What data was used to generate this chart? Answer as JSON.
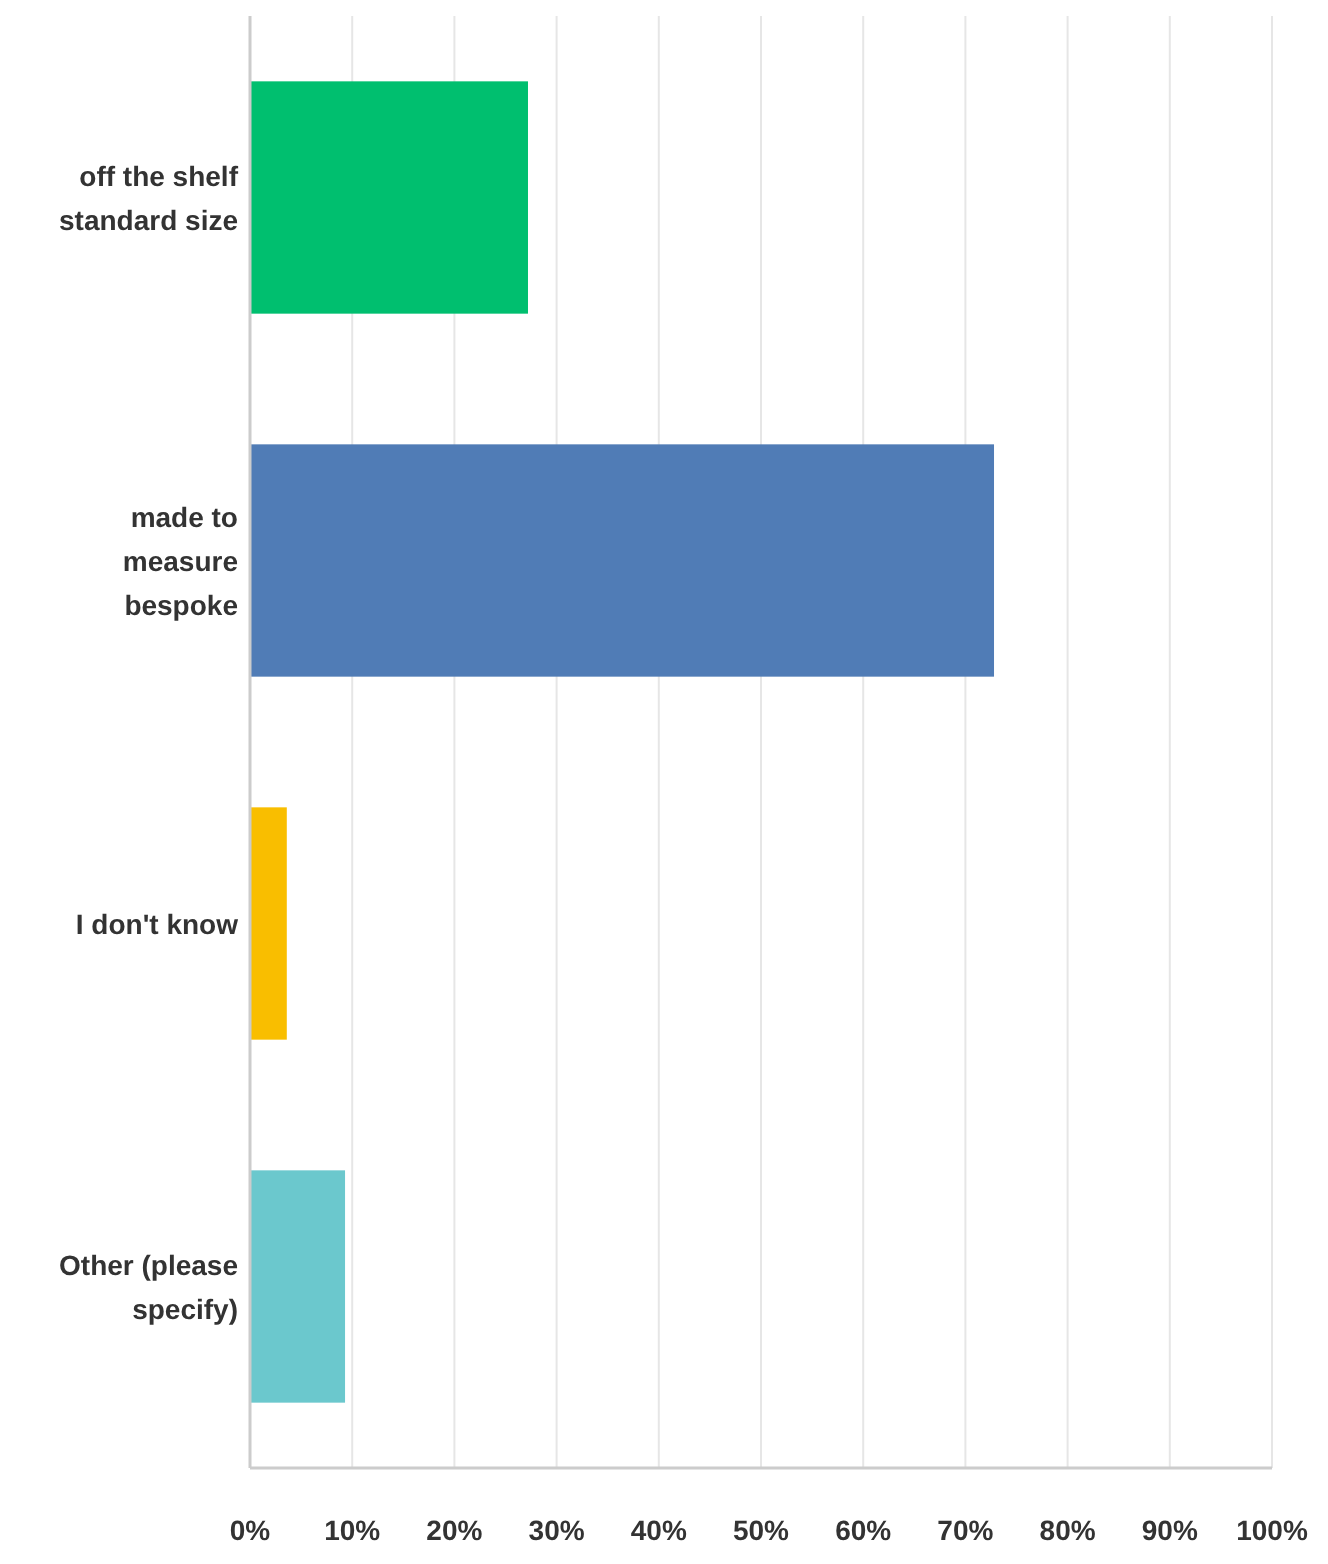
{
  "chart_data": {
    "type": "bar",
    "orientation": "horizontal",
    "categories": [
      "off the shelf standard size",
      "made to measure bespoke",
      "I don't know",
      "Other (please specify)"
    ],
    "values": [
      27.2,
      72.8,
      3.6,
      9.3
    ],
    "colors": [
      "#00bf6f",
      "#507cb6",
      "#f9be00",
      "#6bc8cd"
    ],
    "xlim": [
      0,
      100
    ],
    "xticks": [
      {
        "value": 0,
        "label": "0%"
      },
      {
        "value": 10,
        "label": "10%"
      },
      {
        "value": 20,
        "label": "20%"
      },
      {
        "value": 30,
        "label": "30%"
      },
      {
        "value": 40,
        "label": "40%"
      },
      {
        "value": 50,
        "label": "50%"
      },
      {
        "value": 60,
        "label": "60%"
      },
      {
        "value": 70,
        "label": "70%"
      },
      {
        "value": 80,
        "label": "80%"
      },
      {
        "value": 90,
        "label": "90%"
      },
      {
        "value": 100,
        "label": "100%"
      }
    ],
    "grid": "x"
  }
}
